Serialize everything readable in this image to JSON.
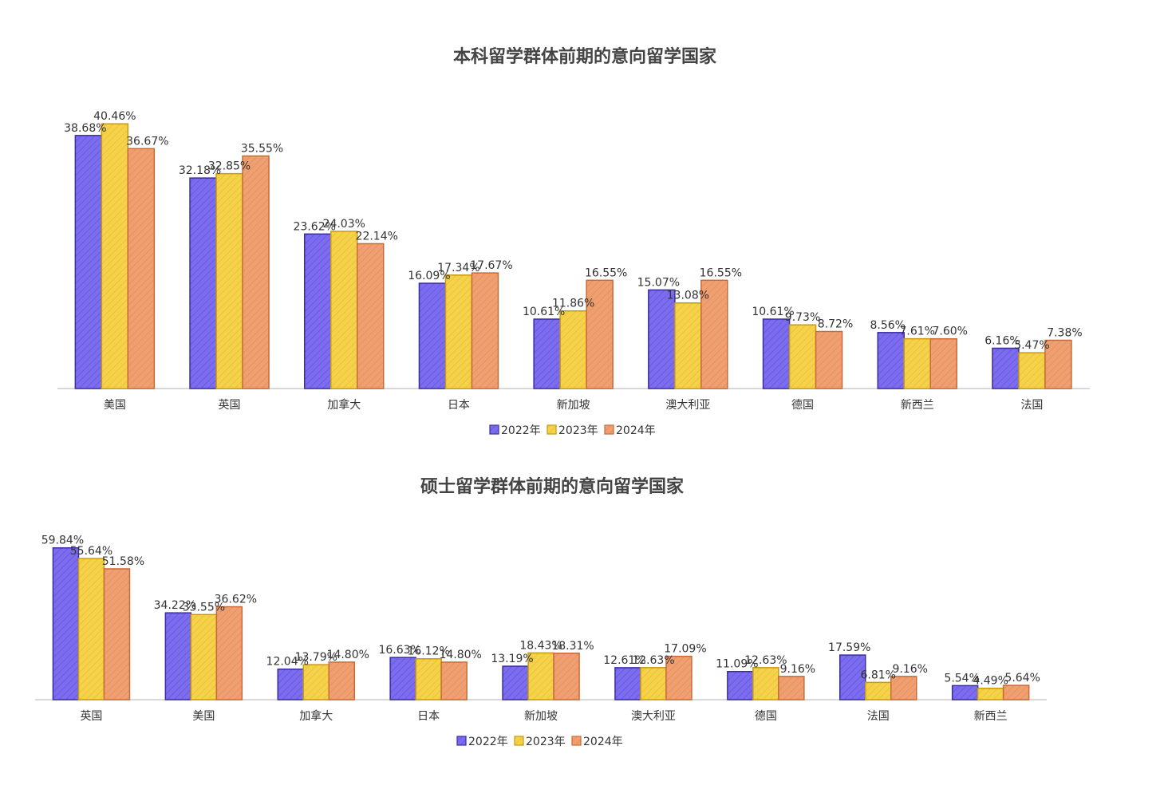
{
  "chart_data": [
    {
      "type": "bar",
      "title": "本科留学群体前期的意向留学国家",
      "categories": [
        "美国",
        "英国",
        "加拿大",
        "日本",
        "新加坡",
        "澳大利亚",
        "德国",
        "新西兰",
        "法国"
      ],
      "series": [
        {
          "name": "2022年",
          "values": [
            38.68,
            32.18,
            23.62,
            16.09,
            10.61,
            15.07,
            10.61,
            8.56,
            6.16
          ],
          "labels": [
            "38.68%",
            "32.18%",
            "23.62%",
            "16.09%",
            "10.61%",
            "15.07%",
            "10.61%",
            "8.56%",
            "6.16%"
          ]
        },
        {
          "name": "2023年",
          "values": [
            40.46,
            32.85,
            24.03,
            17.34,
            11.86,
            13.08,
            9.73,
            7.61,
            5.47
          ],
          "labels": [
            "40.46%",
            "32.85%",
            "24.03%",
            "17.34%",
            "11.86%",
            "13.08%",
            "9.73%",
            "7.61%",
            "5.47%"
          ]
        },
        {
          "name": "2024年",
          "values": [
            36.67,
            35.55,
            22.14,
            17.67,
            16.55,
            16.55,
            8.72,
            7.6,
            7.38
          ],
          "labels": [
            "36.67%",
            "35.55%",
            "22.14%",
            "17.67%",
            "16.55%",
            "16.55%",
            "8.72%",
            "7.60%",
            "7.38%"
          ]
        }
      ],
      "legend_position": "bottom",
      "grid": false
    },
    {
      "type": "bar",
      "title": "硕士留学群体前期的意向留学国家",
      "categories": [
        "英国",
        "美国",
        "加拿大",
        "日本",
        "新加坡",
        "澳大利亚",
        "德国",
        "法国",
        "新西兰"
      ],
      "series": [
        {
          "name": "2022年",
          "values": [
            59.84,
            34.22,
            12.04,
            16.63,
            13.19,
            12.61,
            11.09,
            17.59,
            5.54
          ],
          "labels": [
            "59.84%",
            "34.22%",
            "12.04%",
            "16.63%",
            "13.19%",
            "12.61%",
            "11.09%",
            "17.59%",
            "5.54%"
          ]
        },
        {
          "name": "2023年",
          "values": [
            55.64,
            33.55,
            13.79,
            16.12,
            18.43,
            12.63,
            12.63,
            6.81,
            4.49
          ],
          "labels": [
            "55.64%",
            "33.55%",
            "13.79%",
            "16.12%",
            "18.43%",
            "12.63%",
            "12.63%",
            "6.81%",
            "4.49%"
          ]
        },
        {
          "name": "2024年",
          "values": [
            51.58,
            36.62,
            14.8,
            14.8,
            18.31,
            17.09,
            9.16,
            9.16,
            5.64
          ],
          "labels": [
            "51.58%",
            "36.62%",
            "14.80%",
            "14.80%",
            "18.31%",
            "17.09%",
            "9.16%",
            "9.16%",
            "5.64%"
          ]
        }
      ],
      "legend_position": "bottom",
      "grid": false
    }
  ],
  "colors": {
    "series": [
      "#7b6cf0",
      "#f5d24a",
      "#f0a070"
    ],
    "series_stroke": [
      "#3a2ea0",
      "#c89a10",
      "#c86a3a"
    ]
  }
}
